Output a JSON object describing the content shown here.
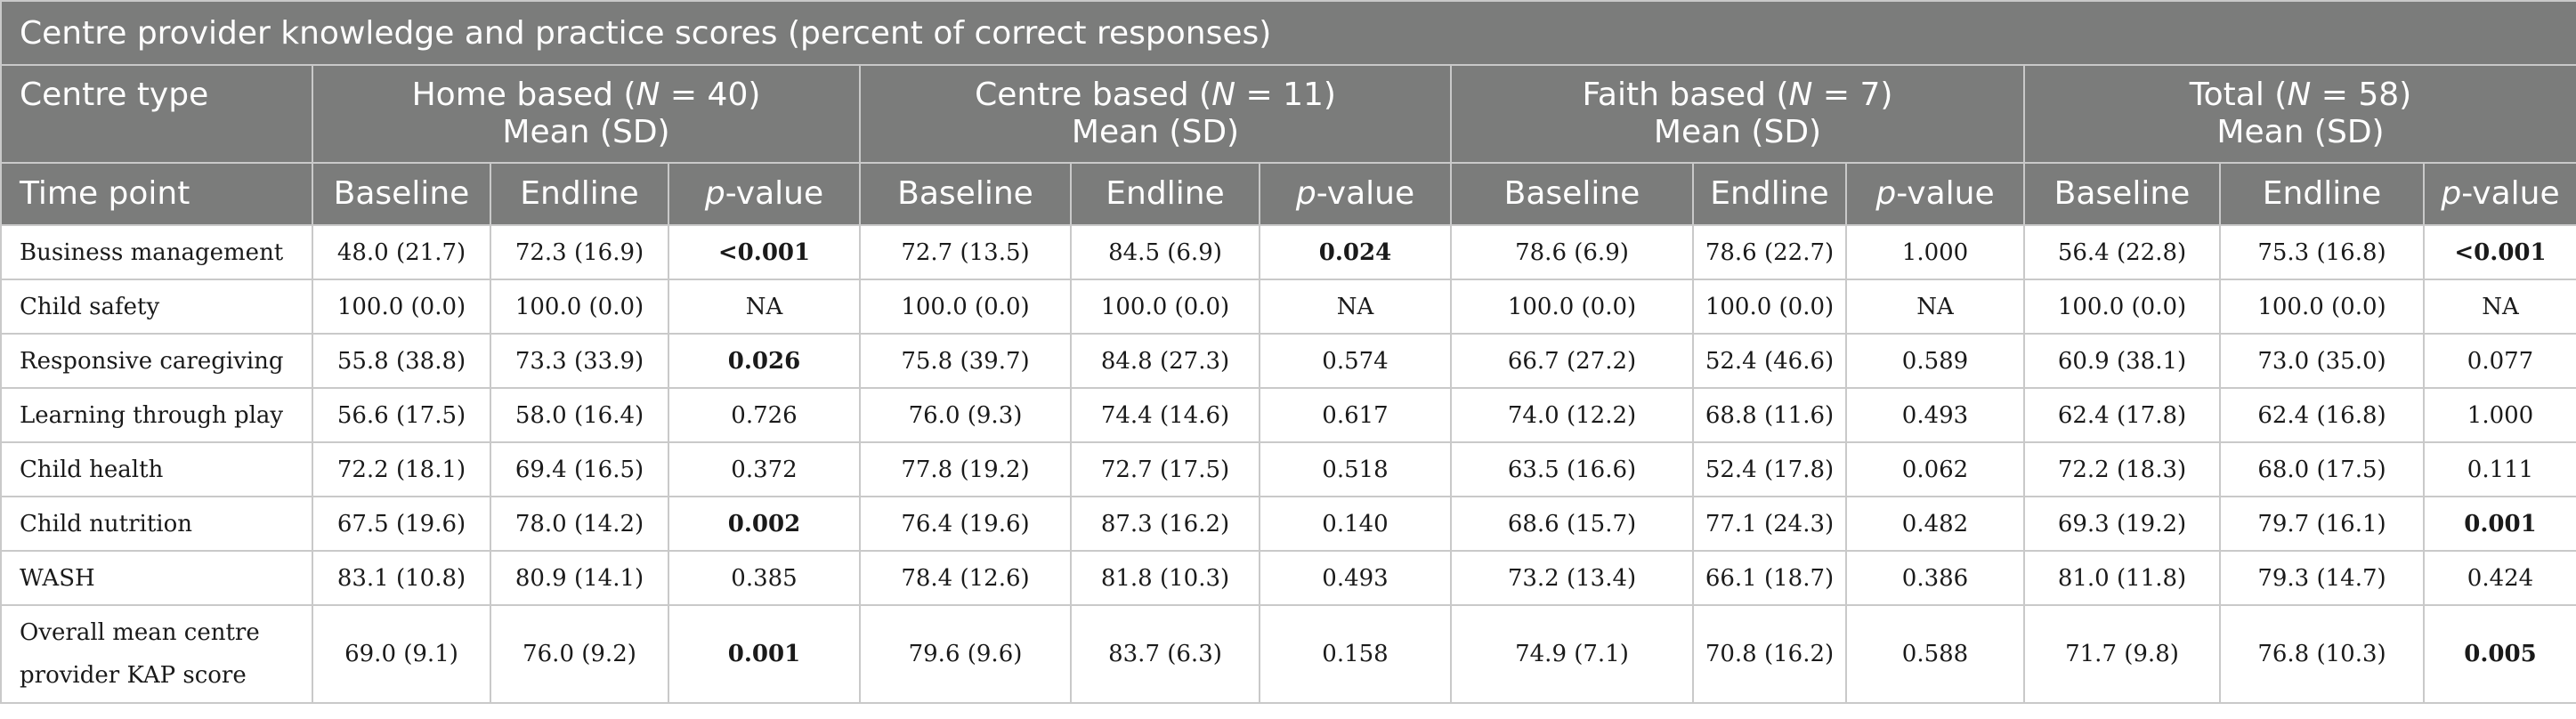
{
  "title": "Centre provider knowledge and practice scores (percent of correct responses)",
  "header": {
    "centre_type": "Centre type",
    "time_point": "Time point",
    "groups": [
      {
        "name": "Home based",
        "n": "N",
        "count": " = 40)",
        "mean": "Mean (SD)"
      },
      {
        "name": "Centre based",
        "n": "N",
        "count": " = 11)",
        "mean": "Mean (SD)"
      },
      {
        "name": "Faith based",
        "n": "N",
        "count": " = 7)",
        "mean": "Mean (SD)"
      },
      {
        "name": "Total",
        "n": "N",
        "count": " = 58)",
        "mean": "Mean (SD)"
      }
    ],
    "sub": {
      "baseline": "Baseline",
      "endline": "Endline",
      "p": "p",
      "value": "-value"
    }
  },
  "rows": [
    {
      "label": "Business management",
      "cells": [
        "48.0 (21.7)",
        "72.3 (16.9)",
        "<0.001",
        "72.7 (13.5)",
        "84.5 (6.9)",
        "0.024",
        "78.6 (6.9)",
        "78.6 (22.7)",
        "1.000",
        "56.4 (22.8)",
        "75.3 (16.8)",
        "<0.001"
      ]
    },
    {
      "label": "Child safety",
      "cells": [
        "100.0 (0.0)",
        "100.0 (0.0)",
        "NA",
        "100.0 (0.0)",
        "100.0 (0.0)",
        "NA",
        "100.0 (0.0)",
        "100.0 (0.0)",
        "NA",
        "100.0 (0.0)",
        "100.0 (0.0)",
        "NA"
      ]
    },
    {
      "label": "Responsive caregiving",
      "cells": [
        "55.8 (38.8)",
        "73.3 (33.9)",
        "0.026",
        "75.8 (39.7)",
        "84.8 (27.3)",
        "0.574",
        "66.7 (27.2)",
        "52.4 (46.6)",
        "0.589",
        "60.9 (38.1)",
        "73.0 (35.0)",
        "0.077"
      ]
    },
    {
      "label": "Learning through play",
      "cells": [
        "56.6 (17.5)",
        "58.0 (16.4)",
        "0.726",
        "76.0 (9.3)",
        "74.4 (14.6)",
        "0.617",
        "74.0 (12.2)",
        "68.8 (11.6)",
        "0.493",
        "62.4 (17.8)",
        "62.4 (16.8)",
        "1.000"
      ]
    },
    {
      "label": "Child health",
      "cells": [
        "72.2 (18.1)",
        "69.4 (16.5)",
        "0.372",
        "77.8 (19.2)",
        "72.7 (17.5)",
        "0.518",
        "63.5 (16.6)",
        "52.4 (17.8)",
        "0.062",
        "72.2 (18.3)",
        "68.0 (17.5)",
        "0.111"
      ]
    },
    {
      "label": "Child nutrition",
      "cells": [
        "67.5 (19.6)",
        "78.0 (14.2)",
        "0.002",
        "76.4 (19.6)",
        "87.3 (16.2)",
        "0.140",
        "68.6 (15.7)",
        "77.1 (24.3)",
        "0.482",
        "69.3 (19.2)",
        "79.7 (16.1)",
        "0.001"
      ]
    },
    {
      "label": "WASH",
      "cells": [
        "83.1 (10.8)",
        "80.9 (14.1)",
        "0.385",
        "78.4 (12.6)",
        "81.8 (10.3)",
        "0.493",
        "73.2 (13.4)",
        "66.1 (18.7)",
        "0.386",
        "81.0 (11.8)",
        "79.3 (14.7)",
        "0.424"
      ]
    },
    {
      "label": "Overall mean centre provider KAP score",
      "label_line1": "Overall mean centre",
      "label_line2": "provider KAP score",
      "cells": [
        "69.0 (9.1)",
        "76.0 (9.2)",
        "0.001",
        "79.6 (9.6)",
        "83.7 (6.3)",
        "0.158",
        "74.9 (7.1)",
        "70.8 (16.2)",
        "0.588",
        "71.7 (9.8)",
        "76.8 (10.3)",
        "0.005"
      ]
    }
  ],
  "bold_cells": [
    [
      0,
      2
    ],
    [
      0,
      5
    ],
    [
      0,
      11
    ],
    [
      2,
      2
    ],
    [
      5,
      2
    ],
    [
      5,
      11
    ],
    [
      7,
      2
    ],
    [
      7,
      11
    ]
  ]
}
